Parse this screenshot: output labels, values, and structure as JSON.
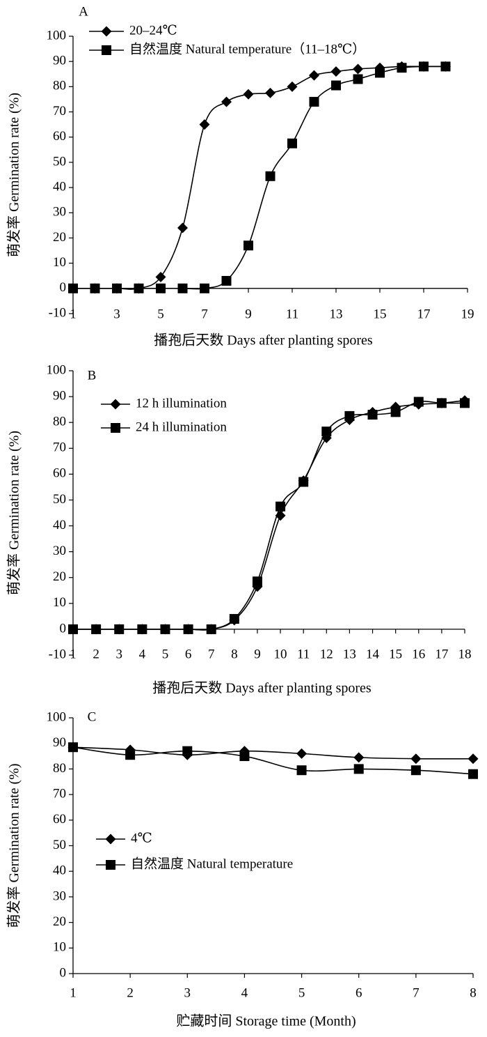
{
  "chart_data": [
    {
      "panel_label": "A",
      "type": "line",
      "xlabel": "播孢后天数 Days after planting spores",
      "ylabel": "萌发率 Germination rate (%)",
      "xlim": [
        1,
        19
      ],
      "ylim": [
        -10,
        100
      ],
      "x_ticks": [
        "1",
        "3",
        "5",
        "7",
        "9",
        "11",
        "13",
        "15",
        "17",
        "19"
      ],
      "y_ticks": [
        "-10",
        "0",
        "10",
        "20",
        "30",
        "40",
        "50",
        "60",
        "70",
        "80",
        "90",
        "100"
      ],
      "grid": false,
      "legend_position": "top-left",
      "series": [
        {
          "name": "20–24℃",
          "marker": "diamond",
          "x": [
            1,
            2,
            3,
            4,
            5,
            6,
            7,
            8,
            9,
            10,
            11,
            12,
            13,
            14,
            15,
            16,
            17,
            18
          ],
          "y": [
            0,
            0,
            0,
            0,
            4.5,
            24,
            65,
            74,
            77,
            77.5,
            80,
            84.5,
            86,
            87,
            87.5,
            88,
            88,
            88
          ]
        },
        {
          "name": "自然温度 Natural temperature（11–18℃）",
          "marker": "square",
          "x": [
            1,
            2,
            3,
            4,
            5,
            6,
            7,
            8,
            9,
            10,
            11,
            12,
            13,
            14,
            15,
            16,
            17,
            18
          ],
          "y": [
            0,
            0,
            0,
            0,
            0,
            0,
            0,
            3,
            17,
            44.5,
            57.5,
            74,
            80.5,
            83,
            85.5,
            87.5,
            88,
            88
          ]
        }
      ]
    },
    {
      "panel_label": "B",
      "type": "line",
      "xlabel": "播孢后天数 Days after planting spores",
      "ylabel": "萌发率 Germination rate (%)",
      "xlim": [
        1,
        18
      ],
      "ylim": [
        -10,
        100
      ],
      "x_ticks": [
        "1",
        "2",
        "3",
        "4",
        "5",
        "6",
        "7",
        "8",
        "9",
        "10",
        "11",
        "12",
        "13",
        "14",
        "15",
        "16",
        "17",
        "18"
      ],
      "y_ticks": [
        "-10",
        "0",
        "10",
        "20",
        "30",
        "40",
        "50",
        "60",
        "70",
        "80",
        "90",
        "100"
      ],
      "grid": false,
      "legend_position": "top-left",
      "series": [
        {
          "name": "12 h  illumination",
          "marker": "diamond",
          "x": [
            1,
            2,
            3,
            4,
            5,
            6,
            7,
            8,
            9,
            10,
            11,
            12,
            13,
            14,
            15,
            16,
            17,
            18
          ],
          "y": [
            0,
            0,
            0,
            0,
            0,
            0,
            0,
            3.5,
            16.5,
            44,
            57.5,
            74,
            81,
            84,
            86,
            87,
            87.5,
            88.5
          ]
        },
        {
          "name": "24 h  illumination",
          "marker": "square",
          "x": [
            1,
            2,
            3,
            4,
            5,
            6,
            7,
            8,
            9,
            10,
            11,
            12,
            13,
            14,
            15,
            16,
            17,
            18
          ],
          "y": [
            0,
            0,
            0,
            0,
            0,
            0,
            0,
            4,
            18.5,
            47.5,
            57,
            76.5,
            82.5,
            83,
            84,
            88,
            87.5,
            87.5
          ]
        }
      ]
    },
    {
      "panel_label": "C",
      "type": "line",
      "xlabel": "贮藏时间 Storage time (Month)",
      "ylabel": "萌发率 Germination rate (%)",
      "xlim": [
        1,
        8
      ],
      "ylim": [
        0,
        100
      ],
      "x_ticks": [
        "1",
        "2",
        "3",
        "4",
        "5",
        "6",
        "7",
        "8"
      ],
      "y_ticks": [
        "0",
        "10",
        "20",
        "30",
        "40",
        "50",
        "60",
        "70",
        "80",
        "90",
        "100"
      ],
      "grid": false,
      "legend_position": "middle-left",
      "series": [
        {
          "name": "4℃",
          "marker": "diamond",
          "x": [
            1,
            2,
            3,
            4,
            5,
            6,
            7,
            8
          ],
          "y": [
            88.5,
            87.5,
            85.5,
            87,
            86,
            84.5,
            84,
            84
          ]
        },
        {
          "name": "自然温度 Natural temperature",
          "marker": "square",
          "x": [
            1,
            2,
            3,
            4,
            5,
            6,
            7,
            8
          ],
          "y": [
            88.5,
            85.5,
            87,
            85,
            79.5,
            80,
            79.5,
            78
          ]
        }
      ]
    }
  ]
}
